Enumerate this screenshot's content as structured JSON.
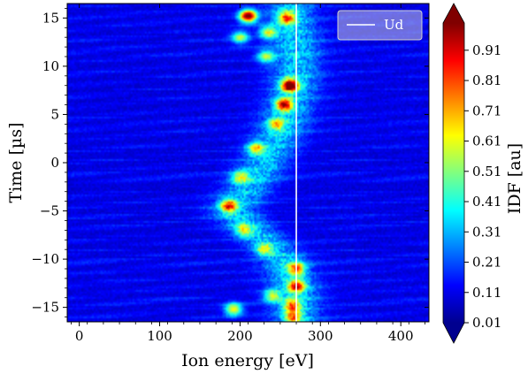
{
  "chart_data": {
    "type": "heatmap",
    "title": "",
    "xlabel": "Ion energy [eV]",
    "ylabel": "Time [µs]",
    "xlim": [
      -15,
      435
    ],
    "ylim": [
      -16.5,
      16.5
    ],
    "xticks": [
      0,
      100,
      200,
      300,
      400
    ],
    "yticks": [
      -15,
      -10,
      -5,
      0,
      5,
      10,
      15
    ],
    "xtick_labels": [
      "0",
      "100",
      "200",
      "300",
      "400"
    ],
    "ytick_labels": [
      "−15",
      "−10",
      "−5",
      "0",
      "5",
      "10",
      "15"
    ],
    "colormap": "jet",
    "colorbar": {
      "label": "IDF [au]",
      "range": [
        0.01,
        1.0
      ],
      "extend": "both",
      "ticks": [
        0.01,
        0.11,
        0.21,
        0.31,
        0.41,
        0.51,
        0.61,
        0.71,
        0.81,
        0.91
      ],
      "tick_labels": [
        "0.01",
        "0.11",
        "0.21",
        "0.31",
        "0.41",
        "0.51",
        "0.61",
        "0.71",
        "0.81",
        "0.91"
      ]
    },
    "background_level": 0.06,
    "ridge": {
      "description_free_points_time_energy": [
        [
          -16,
          270
        ],
        [
          -13,
          268
        ],
        [
          -10,
          255
        ],
        [
          -7,
          215
        ],
        [
          -5,
          190
        ],
        [
          -2,
          215
        ],
        [
          0,
          230
        ],
        [
          3,
          250
        ],
        [
          6,
          262
        ],
        [
          8,
          268
        ],
        [
          10,
          270
        ],
        [
          13,
          268
        ],
        [
          15.5,
          262
        ]
      ]
    },
    "hotspots": [
      {
        "energy": 210,
        "time": 15.2,
        "value": 0.95
      },
      {
        "energy": 262,
        "time": 8.0,
        "value": 0.9
      },
      {
        "energy": 255,
        "time": 6.0,
        "value": 0.7
      },
      {
        "energy": 258,
        "time": 15.0,
        "value": 0.55
      },
      {
        "energy": 235,
        "time": 13.5,
        "value": 0.45
      },
      {
        "energy": 200,
        "time": 13.0,
        "value": 0.45
      },
      {
        "energy": 232,
        "time": 11.0,
        "value": 0.4
      },
      {
        "energy": 186,
        "time": -4.5,
        "value": 0.6
      },
      {
        "energy": 200,
        "time": -1.5,
        "value": 0.4
      },
      {
        "energy": 220,
        "time": 1.5,
        "value": 0.45
      },
      {
        "energy": 270,
        "time": -11.0,
        "value": 0.55
      },
      {
        "energy": 270,
        "time": -12.8,
        "value": 0.65
      },
      {
        "energy": 265,
        "time": -14.8,
        "value": 0.5
      },
      {
        "energy": 240,
        "time": -13.8,
        "value": 0.4
      },
      {
        "energy": 192,
        "time": -15.2,
        "value": 0.55
      },
      {
        "energy": 230,
        "time": -9.0,
        "value": 0.35
      },
      {
        "energy": 205,
        "time": -7.0,
        "value": 0.35
      },
      {
        "energy": 245,
        "time": 4.0,
        "value": 0.4
      },
      {
        "energy": 266,
        "time": -16.0,
        "value": 0.5
      }
    ],
    "reference_line": {
      "name": "Ud",
      "energy": 270,
      "color": "#ffffff"
    },
    "legend": {
      "entries": [
        "Ud"
      ],
      "placement": "upper-right"
    }
  }
}
